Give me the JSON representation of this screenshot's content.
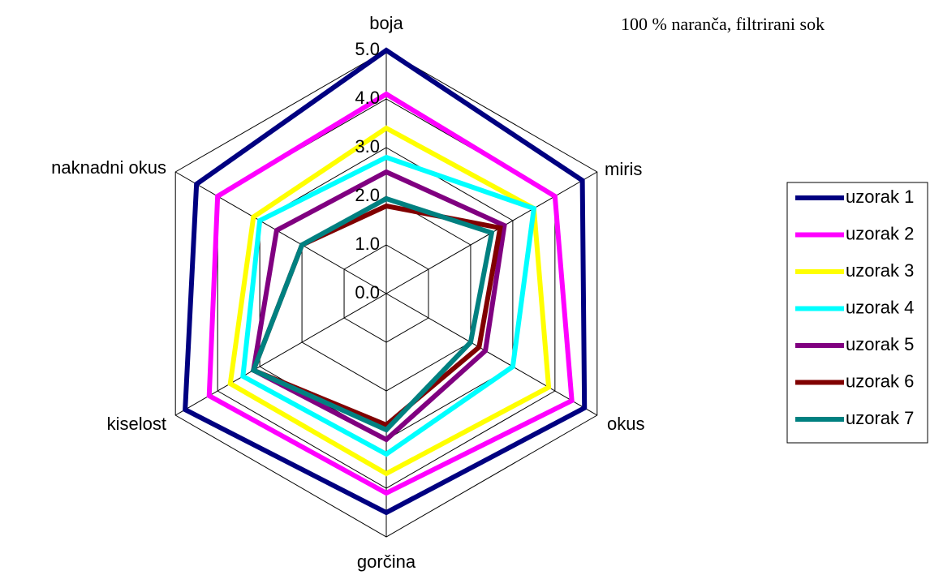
{
  "chart_data": {
    "type": "radar",
    "title": "100 % naranča, filtrirani sok",
    "categories": [
      "boja",
      "miris",
      "okus",
      "gorčina",
      "kiselost",
      "naknadni okus"
    ],
    "ylim": [
      0,
      5
    ],
    "yticks": [
      {
        "value": 0,
        "label": "0.0"
      },
      {
        "value": 1,
        "label": "1.0"
      },
      {
        "value": 2,
        "label": "2.0"
      },
      {
        "value": 3,
        "label": "3.0"
      },
      {
        "value": 4,
        "label": "4.0"
      },
      {
        "value": 5,
        "label": "5.0"
      }
    ],
    "grid": true,
    "legend": "right",
    "series": [
      {
        "name": "uzorak 1",
        "color": "#000080",
        "values": [
          5.0,
          4.65,
          4.7,
          4.5,
          4.77,
          4.5
        ]
      },
      {
        "name": "uzorak 2",
        "color": "#ff00ff",
        "values": [
          4.1,
          4.0,
          4.4,
          4.1,
          4.2,
          4.0
        ]
      },
      {
        "name": "uzorak 3",
        "color": "#ffff00",
        "values": [
          3.4,
          3.5,
          3.85,
          3.7,
          3.7,
          3.15
        ]
      },
      {
        "name": "uzorak 4",
        "color": "#00ffff",
        "values": [
          2.8,
          3.5,
          3.0,
          3.3,
          3.4,
          3.0
        ]
      },
      {
        "name": "uzorak 5",
        "color": "#800080",
        "values": [
          2.5,
          2.8,
          2.35,
          3.0,
          3.15,
          2.6
        ]
      },
      {
        "name": "uzorak 6",
        "color": "#800000",
        "values": [
          1.8,
          2.7,
          2.2,
          2.7,
          3.15,
          2.0
        ]
      },
      {
        "name": "uzorak 7",
        "color": "#008080",
        "values": [
          1.95,
          2.5,
          2.0,
          2.8,
          3.15,
          2.0
        ]
      }
    ]
  }
}
